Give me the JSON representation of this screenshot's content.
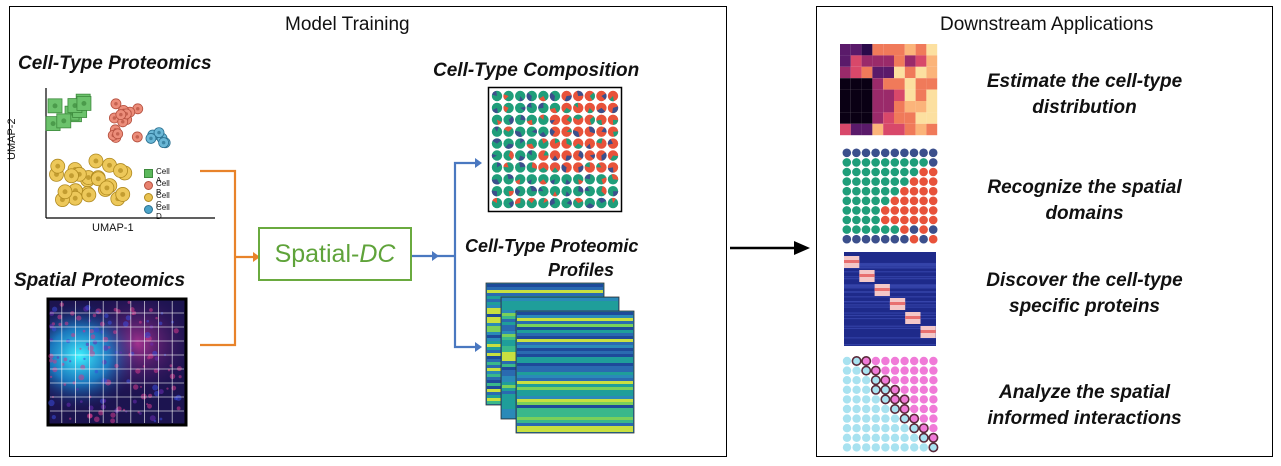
{
  "left_panel": {
    "title": "Model Training",
    "celltype_proteomics": {
      "title": "Cell-Type Proteomics",
      "x_axis": "UMAP-1",
      "y_axis": "UMAP-2",
      "legend": [
        {
          "label": "Cell A",
          "color": "#5cb85c"
        },
        {
          "label": "Cell B",
          "color": "#e8826f"
        },
        {
          "label": "Cell C",
          "color": "#e8c250"
        },
        {
          "label": "Cell D",
          "color": "#4aa3c8"
        }
      ]
    },
    "spatial_proteomics": {
      "title": "Spatial Proteomics"
    },
    "method": {
      "prefix": "Spatial-",
      "suffix": "DC",
      "color": "#5fa33a"
    },
    "composition": {
      "title": "Cell-Type Composition"
    },
    "profiles": {
      "title_line1": "Cell-Type Proteomic",
      "title_line2": "Profiles"
    }
  },
  "right_panel": {
    "title": "Downstream Applications",
    "applications": [
      {
        "line1": "Estimate the cell-type",
        "line2": "distribution",
        "icon": "heatmap-icon"
      },
      {
        "line1": "Recognize the spatial",
        "line2": "domains",
        "icon": "domain-dots-icon"
      },
      {
        "line1": "Discover the cell-type",
        "line2": "specific proteins",
        "icon": "protein-heatmap-icon"
      },
      {
        "line1": "Analyze the spatial",
        "line2": "informed interactions",
        "icon": "interaction-dots-icon"
      }
    ]
  },
  "colors": {
    "orange_connector": "#e8832a",
    "blue_connector": "#4a78c0",
    "green": "#1f9e7a",
    "red": "#e8523a",
    "navy": "#3b4f8c"
  }
}
